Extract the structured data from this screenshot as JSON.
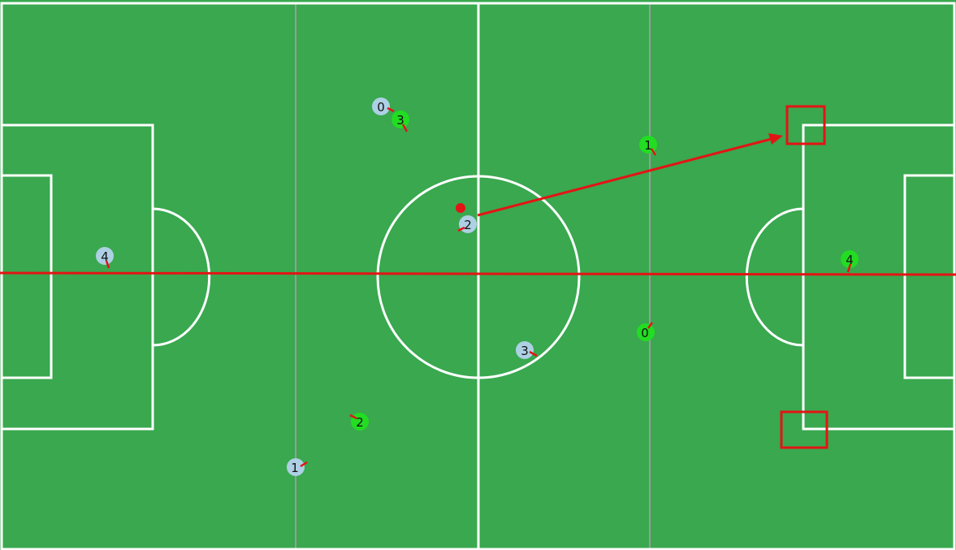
{
  "colors": {
    "field": "#39a84f",
    "line": "#ffffff",
    "thirds_line": "#9a9a9a",
    "team_a": "#add0e4",
    "team_b": "#22dd22",
    "annotation": "#e31414",
    "ball": "#e31414",
    "heading_tick": "#e31414",
    "number_text": "#111111"
  },
  "team_a": {
    "color_name": "light-blue",
    "players": [
      {
        "number": "0"
      },
      {
        "number": "1"
      },
      {
        "number": "2"
      },
      {
        "number": "3"
      },
      {
        "number": "4"
      }
    ]
  },
  "team_b": {
    "color_name": "green",
    "players": [
      {
        "number": "0"
      },
      {
        "number": "1"
      },
      {
        "number": "2"
      },
      {
        "number": "3"
      },
      {
        "number": "4"
      }
    ]
  },
  "ball": {
    "icon": "ball-icon"
  },
  "annotations": {
    "pass_arrow": "arrow-icon",
    "target_boxes": 2,
    "horizontal_line": true
  }
}
